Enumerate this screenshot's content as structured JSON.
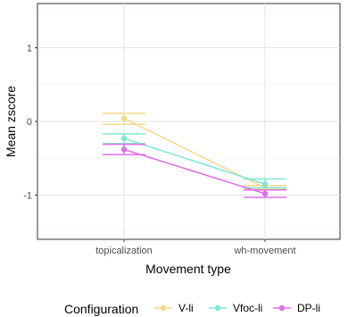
{
  "chart_data": {
    "type": "line",
    "x": [
      "topicalization",
      "wh-movement"
    ],
    "xlabel": "Movement type",
    "ylabel": "Mean zscore",
    "ylim": [
      -1.6,
      1.6
    ],
    "yticks": [
      -1,
      0,
      1
    ],
    "grid": true,
    "legend_position": "bottom",
    "legend_title": "Configuration",
    "series": [
      {
        "name": "V-li",
        "color": "#F5D98C",
        "values": [
          0.04,
          -0.9
        ],
        "lower": [
          -0.04,
          -0.92
        ],
        "upper": [
          0.11,
          -0.87
        ]
      },
      {
        "name": "Vfoc-li",
        "color": "#7FE8D6",
        "values": [
          -0.23,
          -0.85
        ],
        "lower": [
          -0.3,
          -0.9
        ],
        "upper": [
          -0.17,
          -0.78
        ]
      },
      {
        "name": "DP-li",
        "color": "#DD6FE8",
        "values": [
          -0.38,
          -0.98
        ],
        "lower": [
          -0.45,
          -1.03
        ],
        "upper": [
          -0.31,
          -0.93
        ]
      }
    ]
  }
}
